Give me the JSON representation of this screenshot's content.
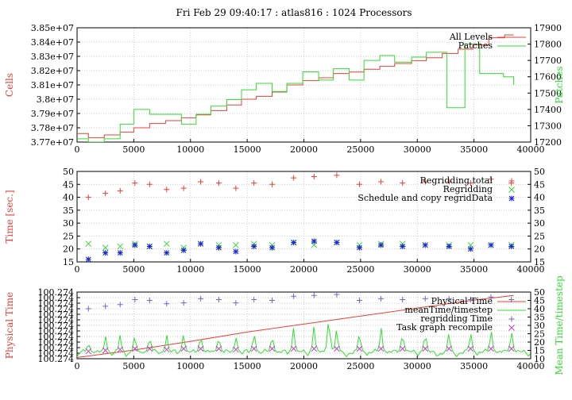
{
  "title": "Fri Feb 29 09:40:17 : atlas816 : 1024 Processors",
  "colors": {
    "red": "#e8403a",
    "green": "#33dd33",
    "blue": "#1c2bd0",
    "purple": "#c43fc4",
    "bluecross": "#6b6bcc"
  },
  "chart_data": [
    {
      "type": "line",
      "ylabel": "Cells",
      "y2label": "Patches",
      "xlim": [
        0,
        40000
      ],
      "ylim": [
        37700000,
        38500000
      ],
      "y2lim": [
        17200,
        17900
      ],
      "xticks": [
        "0",
        "5000",
        "10000",
        "15000",
        "20000",
        "25000",
        "30000",
        "35000",
        "40000"
      ],
      "yticks": [
        "3.77e+07",
        "3.78e+07",
        "3.79e+07",
        "3.8e+07",
        "3.81e+07",
        "3.82e+07",
        "3.83e+07",
        "3.84e+07",
        "3.85e+07"
      ],
      "y2ticks": [
        "17200",
        "17300",
        "17400",
        "17500",
        "17600",
        "17700",
        "17800",
        "17900"
      ],
      "legend": {
        "position": "top-right",
        "entries": [
          "All Levels",
          "Patches"
        ]
      },
      "series": [
        {
          "name": "All Levels",
          "axis": "left",
          "step": true,
          "x": [
            0,
            1000,
            2400,
            3800,
            5000,
            6400,
            7800,
            9200,
            10500,
            11800,
            13200,
            14500,
            15800,
            17200,
            18500,
            19900,
            21300,
            22600,
            24000,
            25300,
            26700,
            28000,
            29500,
            30800,
            32200,
            33600,
            34900,
            36300,
            37700,
            38500
          ],
          "y": [
            37760000,
            37730000,
            37750000,
            37770000,
            37800000,
            37830000,
            37850000,
            37870000,
            37890000,
            37920000,
            37960000,
            38000000,
            38020000,
            38050000,
            38100000,
            38130000,
            38150000,
            38180000,
            38190000,
            38210000,
            38230000,
            38250000,
            38270000,
            38290000,
            38320000,
            38350000,
            38380000,
            38430000,
            38450000,
            38450000
          ]
        },
        {
          "name": "Patches",
          "axis": "right",
          "step": true,
          "x": [
            0,
            1000,
            2400,
            3800,
            5000,
            6400,
            7800,
            9200,
            10500,
            11800,
            13200,
            14500,
            15800,
            17200,
            18500,
            19900,
            21300,
            22600,
            24000,
            25300,
            26700,
            28000,
            29500,
            30800,
            32600,
            34200,
            35500,
            37600,
            38500
          ],
          "y": [
            17220,
            17200,
            17220,
            17310,
            17400,
            17370,
            17370,
            17310,
            17370,
            17420,
            17460,
            17520,
            17560,
            17510,
            17560,
            17630,
            17580,
            17650,
            17580,
            17700,
            17730,
            17690,
            17720,
            17750,
            17410,
            17800,
            17620,
            17600,
            17550
          ]
        }
      ]
    },
    {
      "type": "scatter",
      "ylabel": "Time [sec.]",
      "xlim": [
        0,
        40000
      ],
      "ylim": [
        15,
        50
      ],
      "y2lim": [
        15,
        50
      ],
      "xticks": [
        "0",
        "5000",
        "10000",
        "15000",
        "20000",
        "25000",
        "30000",
        "35000",
        "40000"
      ],
      "yticks": [
        "15",
        "20",
        "25",
        "30",
        "35",
        "40",
        "45",
        "50"
      ],
      "y2ticks": [
        "15",
        "20",
        "25",
        "30",
        "35",
        "40",
        "45",
        "50"
      ],
      "legend": {
        "position": "top-right",
        "entries": [
          "Regridding total",
          "Regridding",
          "Schedule and copy regridData"
        ]
      },
      "series": [
        {
          "name": "Regridding total",
          "marker": "plus",
          "x": [
            1000,
            2500,
            3800,
            5100,
            6400,
            7900,
            9400,
            10900,
            12500,
            14000,
            15600,
            17200,
            19100,
            20900,
            22900,
            24900,
            26800,
            28700,
            30700,
            32800,
            34700,
            36500,
            38300
          ],
          "y": [
            40,
            41.5,
            42.5,
            45.5,
            45,
            43,
            43.5,
            46,
            45.5,
            43.5,
            45.5,
            45,
            47.5,
            48,
            48.5,
            45,
            46,
            45.5,
            46,
            46,
            45.5,
            47,
            45.5
          ]
        },
        {
          "name": "Regridding",
          "marker": "x",
          "x": [
            1000,
            2500,
            3800,
            5100,
            6400,
            7900,
            9400,
            10900,
            12500,
            14000,
            15600,
            17200,
            19100,
            20900,
            22900,
            24900,
            26800,
            28700,
            30700,
            32800,
            34700,
            36500,
            38300
          ],
          "y": [
            22,
            20.5,
            21,
            22,
            21,
            22,
            20.5,
            22,
            21.5,
            21.5,
            22,
            21.5,
            22.5,
            21.5,
            22.5,
            21.5,
            22,
            22,
            21.5,
            21.5,
            21.5,
            21.5,
            21.5
          ]
        },
        {
          "name": "Schedule and copy regridData",
          "marker": "star",
          "x": [
            1000,
            2500,
            3800,
            5100,
            6400,
            7900,
            9400,
            10900,
            12500,
            14000,
            15600,
            17200,
            19100,
            20900,
            22900,
            24900,
            26800,
            28700,
            30700,
            32800,
            34700,
            36500,
            38300
          ],
          "y": [
            16,
            18.5,
            18.5,
            21.5,
            21,
            18.5,
            19.5,
            22,
            20.5,
            19,
            21,
            20.5,
            22.5,
            23,
            22.5,
            20.5,
            21.5,
            21,
            21.5,
            21,
            20,
            21.5,
            21
          ]
        }
      ]
    },
    {
      "type": "line",
      "ylabel": "Physical Time",
      "y2label": "Mean Time/timestep",
      "xlim": [
        0,
        40000
      ],
      "ylim": [
        0,
        1
      ],
      "y2lim": [
        10,
        50
      ],
      "xticks": [
        "0",
        "5000",
        "10000",
        "15000",
        "20000",
        "25000",
        "30000",
        "35000",
        "40000"
      ],
      "yticks": [
        "100.274",
        "100.274",
        "100.274",
        "100.274",
        "100.274",
        "100.274",
        "100.274",
        "100.274",
        "100.274",
        "100.274",
        "100.274",
        "100.274",
        "100.274"
      ],
      "y2ticks": [
        "10",
        "15",
        "20",
        "25",
        "30",
        "35",
        "40",
        "45",
        "50"
      ],
      "legend": {
        "position": "top-right",
        "entries": [
          "Physical Time",
          "meanTime/timestep",
          "regridding Time",
          "Task graph recompile"
        ]
      },
      "series": [
        {
          "name": "Physical Time",
          "axis": "left",
          "x": [
            0,
            1000,
            5000,
            10000,
            15000,
            20000,
            25000,
            30000,
            35000,
            38500
          ],
          "y": [
            0.02,
            0.04,
            0.13,
            0.26,
            0.4,
            0.52,
            0.64,
            0.76,
            0.88,
            0.95
          ]
        },
        {
          "name": "meanTime/timestep",
          "axis": "right",
          "spiky": true,
          "baseline": 13.5,
          "spikes_x": [
            1000,
            2500,
            3800,
            5100,
            6400,
            7900,
            9400,
            10900,
            12500,
            14000,
            15600,
            17200,
            19100,
            20900,
            22200,
            22900,
            24900,
            26800,
            28700,
            30700,
            32800,
            34700,
            36500,
            38300
          ],
          "spikes_y": [
            22,
            25,
            26,
            28,
            27,
            26,
            28,
            28,
            27,
            26,
            30,
            28,
            31,
            32,
            42,
            32,
            30,
            31,
            30,
            30,
            29,
            29,
            31,
            30
          ]
        },
        {
          "name": "regridding Time",
          "axis": "right",
          "marker": "plus",
          "x": [
            1000,
            2500,
            3800,
            5100,
            6400,
            7900,
            9400,
            10900,
            12500,
            14000,
            15600,
            17200,
            19100,
            20900,
            22900,
            24900,
            26800,
            28700,
            30700,
            32800,
            34700,
            36500,
            38300
          ],
          "y": [
            40,
            41.5,
            42.5,
            45.5,
            45,
            43,
            43.5,
            46,
            45.5,
            43.5,
            45.5,
            45,
            47.5,
            48,
            48.5,
            45,
            46,
            45.5,
            46,
            46,
            45.5,
            47,
            45.5
          ]
        },
        {
          "name": "Task graph recompile",
          "axis": "right",
          "marker": "x",
          "x": [
            1000,
            2500,
            3800,
            5100,
            6400,
            7900,
            9400,
            10900,
            12500,
            14000,
            15600,
            17200,
            19100,
            20900,
            22900,
            24900,
            26800,
            28700,
            30700,
            32800,
            34700,
            36500,
            38300
          ],
          "y": [
            14.5,
            15,
            15.5,
            16,
            16,
            15.5,
            16,
            16,
            16,
            15.5,
            16,
            16,
            16,
            16,
            16,
            16,
            16,
            16,
            16,
            16,
            16,
            16,
            16
          ]
        }
      ]
    }
  ]
}
